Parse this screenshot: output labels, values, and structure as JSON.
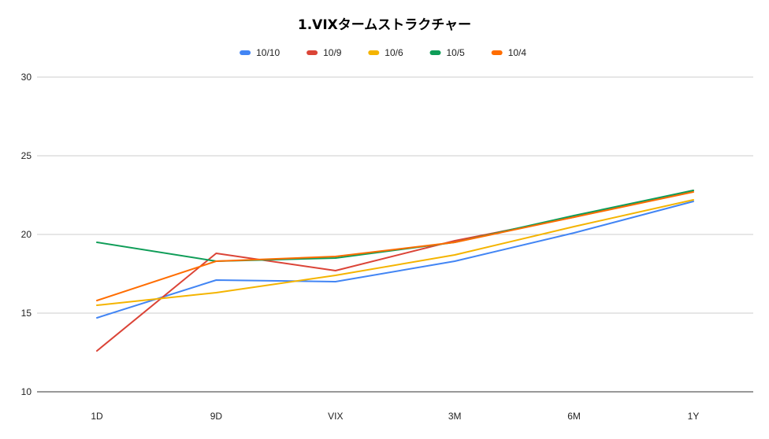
{
  "chart_data": {
    "type": "line",
    "title": "1.VIXタームストラクチャー",
    "xlabel": "",
    "ylabel": "",
    "categories": [
      "1D",
      "9D",
      "VIX",
      "3M",
      "6M",
      "1Y"
    ],
    "ylim": [
      10,
      30
    ],
    "yticks": [
      10,
      15,
      20,
      25,
      30
    ],
    "grid": true,
    "legend_position": "top-center",
    "series": [
      {
        "name": "10/10",
        "color": "#4285f4",
        "values": [
          14.7,
          17.1,
          17.0,
          18.3,
          20.1,
          22.1
        ]
      },
      {
        "name": "10/9",
        "color": "#db4437",
        "values": [
          12.6,
          18.8,
          17.7,
          19.6,
          21.1,
          22.8
        ]
      },
      {
        "name": "10/6",
        "color": "#f4b400",
        "values": [
          15.5,
          16.3,
          17.4,
          18.7,
          20.5,
          22.2
        ]
      },
      {
        "name": "10/5",
        "color": "#0f9d58",
        "values": [
          19.5,
          18.3,
          18.5,
          19.5,
          21.2,
          22.8
        ]
      },
      {
        "name": "10/4",
        "color": "#ff6d01",
        "values": [
          15.8,
          18.3,
          18.6,
          19.5,
          21.1,
          22.7
        ]
      }
    ]
  }
}
